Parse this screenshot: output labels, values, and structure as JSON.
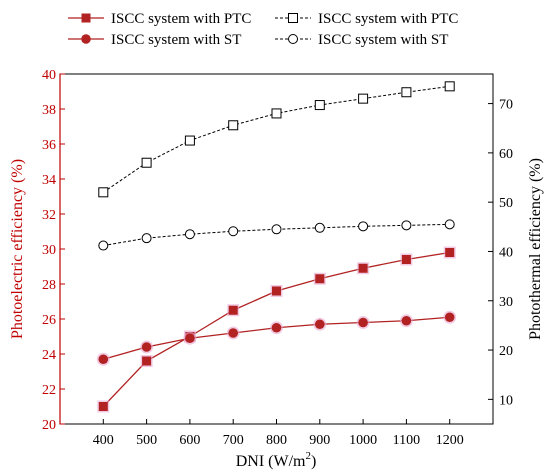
{
  "chart_data": {
    "type": "line",
    "title": "",
    "xlabel": "DNI (W/m",
    "xlabel_sup": "2",
    "xlabel_close": ")",
    "ylabel_left": "Photoelectric efficiency (%)",
    "ylabel_right": "Photothermal efficiency (%)",
    "x": [
      400,
      500,
      600,
      700,
      800,
      900,
      1000,
      1100,
      1200
    ],
    "x_tick_labels": [
      "400",
      "500",
      "600",
      "700",
      "800",
      "900",
      "1000",
      "1100",
      "1200"
    ],
    "xlim": [
      300,
      1300
    ],
    "ylim_left": [
      20,
      40
    ],
    "ylim_right": [
      5,
      76
    ],
    "left_ticks": [
      "20",
      "22",
      "24",
      "26",
      "28",
      "30",
      "32",
      "34",
      "36",
      "38",
      "40"
    ],
    "right_ticks": [
      "10",
      "20",
      "30",
      "40",
      "50",
      "60",
      "70"
    ],
    "legend_position": "top",
    "left_axis_color": "#c00000",
    "right_axis_color": "#000000",
    "series": [
      {
        "name": "ISCC system with PTC",
        "axis": "left",
        "marker": "filled-square",
        "color": "#b22222",
        "values": [
          21.0,
          23.6,
          25.0,
          26.5,
          27.6,
          28.3,
          28.9,
          29.4,
          29.8
        ]
      },
      {
        "name": "ISCC system with ST",
        "axis": "left",
        "marker": "filled-circle",
        "color": "#b22222",
        "values": [
          23.7,
          24.4,
          24.9,
          25.2,
          25.5,
          25.7,
          25.8,
          25.9,
          26.1
        ]
      },
      {
        "name": "ISCC system with PTC",
        "axis": "right",
        "marker": "open-square",
        "color": "#000000",
        "dashed": true,
        "values": [
          52.0,
          58.0,
          62.5,
          65.6,
          68.0,
          69.7,
          71.0,
          72.3,
          73.5
        ]
      },
      {
        "name": "ISCC system with ST",
        "axis": "right",
        "marker": "open-circle",
        "color": "#000000",
        "dashed": true,
        "values": [
          41.2,
          42.7,
          43.5,
          44.1,
          44.5,
          44.8,
          45.1,
          45.3,
          45.5
        ]
      }
    ]
  }
}
